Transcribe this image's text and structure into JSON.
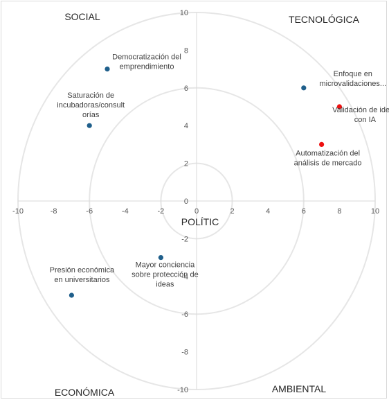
{
  "chart_data": {
    "type": "scatter",
    "title": "",
    "xlabel": "",
    "ylabel": "",
    "xlim": [
      -10,
      10
    ],
    "ylim": [
      -10,
      10
    ],
    "x_ticks": [
      -10,
      -8,
      -6,
      -4,
      -2,
      0,
      2,
      4,
      6,
      8,
      10
    ],
    "y_ticks": [
      -10,
      -8,
      -6,
      -4,
      -2,
      0,
      2,
      4,
      6,
      8,
      10
    ],
    "rings": [
      2,
      6,
      10
    ],
    "grid": false,
    "colors": {
      "blue": "#1f5f8b",
      "red": "#ee1111",
      "ring": "#e6e6e6",
      "axis": "#d9d9d9"
    },
    "quadrant_labels": {
      "top_left": "SOCIAL",
      "top_right": "TECNOLÓGICA",
      "bottom_left": "ECONÓMICA",
      "bottom_right": "AMBIENTAL",
      "center": "POLÍTIC"
    },
    "points": [
      {
        "x": -5,
        "y": 7,
        "color": "blue",
        "label": [
          "Democratización del",
          "emprendimiento"
        ]
      },
      {
        "x": -6,
        "y": 4,
        "color": "blue",
        "label": [
          "Saturación de",
          "incubadoras/consult",
          "orías"
        ]
      },
      {
        "x": 6,
        "y": 6,
        "color": "blue",
        "label": [
          "Enfoque en",
          "microvalidaciones..."
        ]
      },
      {
        "x": 8,
        "y": 5,
        "color": "red",
        "label": [
          "Validación de ideas",
          "con IA"
        ]
      },
      {
        "x": 7,
        "y": 3,
        "color": "red",
        "label": [
          "Automatización del",
          "análisis de mercado"
        ]
      },
      {
        "x": -2,
        "y": -3,
        "color": "blue",
        "label": [
          "Mayor conciencia",
          "sobre protección de",
          "ideas"
        ]
      },
      {
        "x": -7,
        "y": -5,
        "color": "blue",
        "label": [
          "Presión económica",
          "en universitarios"
        ]
      }
    ]
  }
}
